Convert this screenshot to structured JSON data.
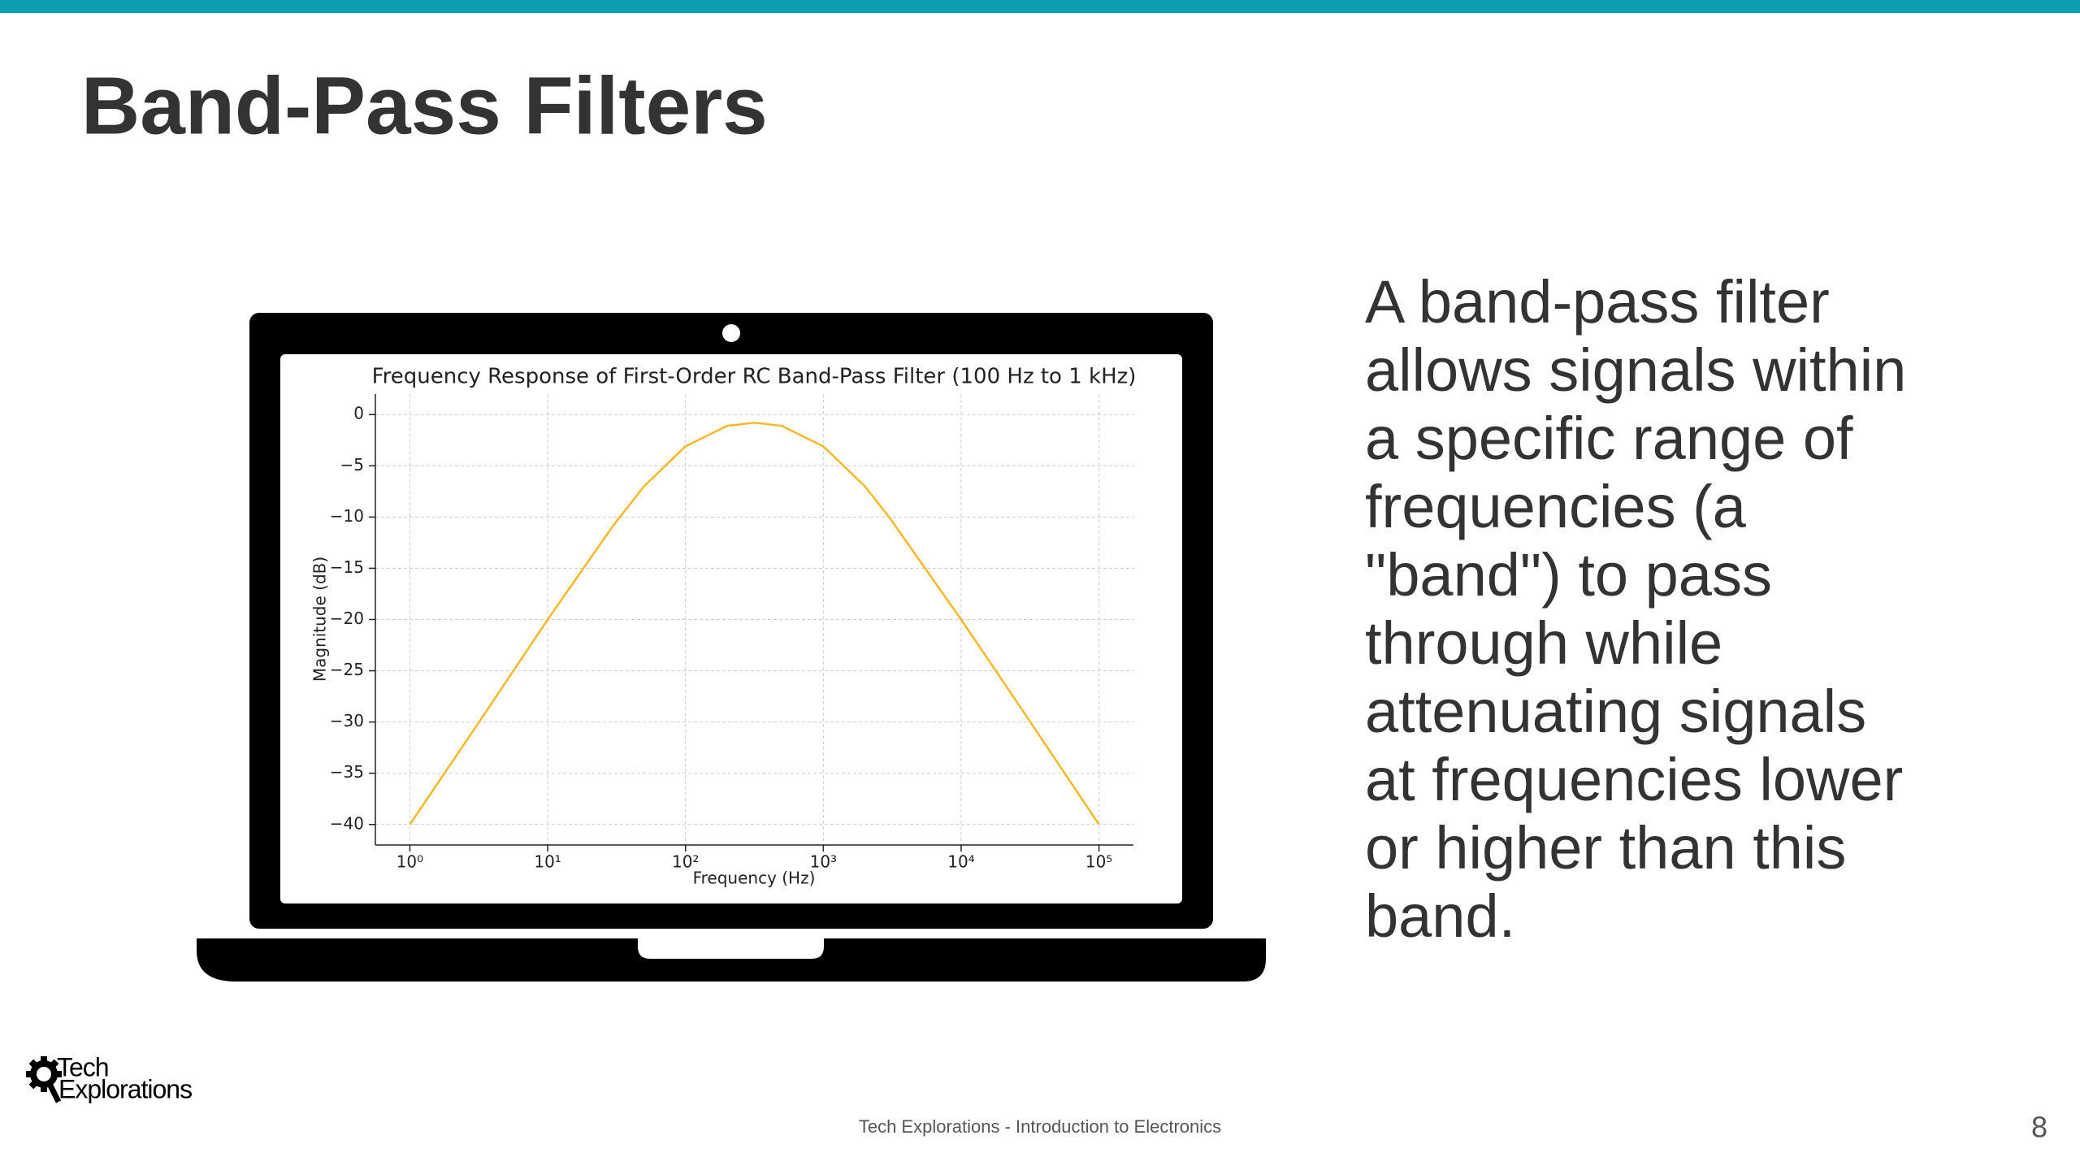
{
  "slide": {
    "title": "Band-Pass Filters",
    "body": "A band-pass filter allows signals within a specific range of frequencies (a \"band\") to pass through while attenuating signals at frequencies lower or higher than this band.",
    "logo": [
      "Tech",
      "Explorations"
    ],
    "footer": "Tech Explorations - Introduction to Electronics",
    "page_number": "8"
  },
  "chart_data": {
    "type": "line",
    "title": "Frequency Response of First-Order RC Band-Pass Filter (100 Hz to 1 kHz)",
    "x_label": "Frequency (Hz)",
    "y_label": "Magnitude (dB)",
    "x": [
      1,
      3,
      10,
      30,
      50,
      100,
      200,
      316,
      500,
      1000,
      2000,
      3000,
      10000,
      30000,
      100000
    ],
    "values": [
      -40,
      -30.5,
      -20,
      -10.8,
      -7,
      -3.1,
      -1.1,
      -0.8,
      -1.1,
      -3.1,
      -7,
      -10,
      -20,
      -29.5,
      -40
    ],
    "color": "#f2b928",
    "xscale": "log",
    "xlim": [
      0.562,
      177828
    ],
    "ylim": [
      -42,
      2
    ],
    "xticks": [
      {
        "value": 1,
        "label": "10⁰"
      },
      {
        "value": 10,
        "label": "10¹"
      },
      {
        "value": 100,
        "label": "10²"
      },
      {
        "value": 1000,
        "label": "10³"
      },
      {
        "value": 10000,
        "label": "10⁴"
      },
      {
        "value": 100000,
        "label": "10⁵"
      }
    ],
    "yticks": [
      0,
      {
        "value": -5,
        "label": "−5"
      },
      {
        "value": -10,
        "label": "−10"
      },
      {
        "value": -15,
        "label": "−15"
      },
      {
        "value": -20,
        "label": "−20"
      },
      {
        "value": -25,
        "label": "−25"
      },
      {
        "value": -30,
        "label": "−30"
      },
      {
        "value": -35,
        "label": "−35"
      },
      {
        "value": -40,
        "label": "−40"
      }
    ],
    "grid": true
  }
}
